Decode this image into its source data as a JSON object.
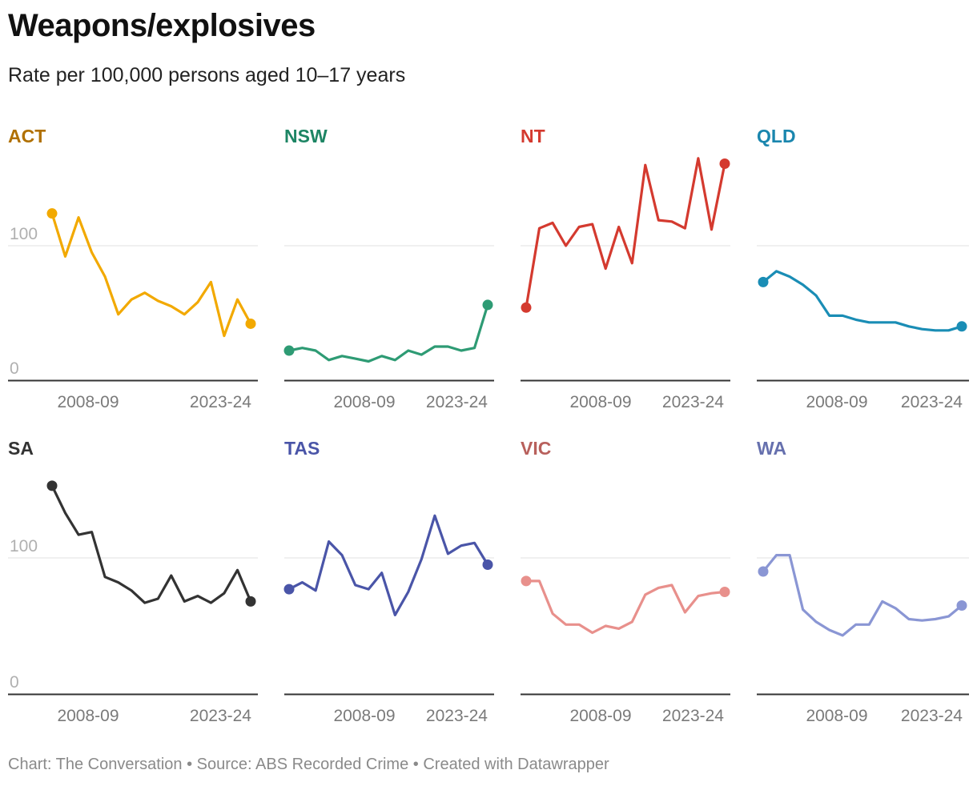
{
  "title": "Weapons/explosives",
  "subtitle": "Rate per 100,000 persons aged 10–17 years",
  "footer": {
    "chart": "Chart: The Conversation",
    "source": "Source: ABS Recorded Crime",
    "created": "Created with Datawrapper",
    "separator": " • "
  },
  "chart_data": {
    "type": "line",
    "layout": "small-multiples",
    "x_range": [
      "2008-09",
      "2023-24"
    ],
    "x_ticks": [
      "2008-09",
      "2023-24"
    ],
    "y_ticks": [
      0,
      100
    ],
    "ylim": [
      0,
      170
    ],
    "grid": true,
    "panels": [
      {
        "name": "ACT",
        "color": "#F2A900",
        "title_color": "#B07000",
        "values": [
          124,
          92,
          121,
          95,
          77,
          49,
          60,
          65,
          59,
          55,
          49,
          58,
          73,
          33,
          60,
          42
        ]
      },
      {
        "name": "NSW",
        "color": "#2E9B74",
        "title_color": "#1D8564",
        "values": [
          22,
          24,
          22,
          15,
          18,
          16,
          14,
          18,
          15,
          22,
          19,
          25,
          25,
          22,
          24,
          56
        ]
      },
      {
        "name": "NT",
        "color": "#D43A2F",
        "title_color": "#D43A2F",
        "values": [
          54,
          113,
          117,
          100,
          114,
          116,
          83,
          114,
          87,
          160,
          119,
          118,
          113,
          165,
          112,
          161
        ]
      },
      {
        "name": "QLD",
        "color": "#1A8DB5",
        "title_color": "#1A86AE",
        "values": [
          73,
          81,
          77,
          71,
          63,
          48,
          48,
          45,
          43,
          43,
          43,
          40,
          38,
          37,
          37,
          40
        ]
      },
      {
        "name": "SA",
        "color": "#333333",
        "title_color": "#333333",
        "values": [
          153,
          133,
          117,
          119,
          86,
          82,
          76,
          67,
          70,
          87,
          68,
          72,
          67,
          74,
          91,
          68
        ]
      },
      {
        "name": "TAS",
        "color": "#4A55A8",
        "title_color": "#4A55A8",
        "values": [
          77,
          82,
          76,
          112,
          102,
          80,
          77,
          89,
          58,
          75,
          99,
          131,
          103,
          109,
          111,
          95
        ]
      },
      {
        "name": "VIC",
        "color": "#E8908C",
        "title_color": "#B8605C",
        "values": [
          83,
          83,
          59,
          51,
          51,
          45,
          50,
          48,
          53,
          73,
          78,
          80,
          60,
          72,
          74,
          75
        ]
      },
      {
        "name": "WA",
        "color": "#8A96D4",
        "title_color": "#6670AE",
        "values": [
          90,
          102,
          102,
          62,
          53,
          47,
          43,
          51,
          51,
          68,
          63,
          55,
          54,
          55,
          57,
          65
        ]
      }
    ]
  }
}
